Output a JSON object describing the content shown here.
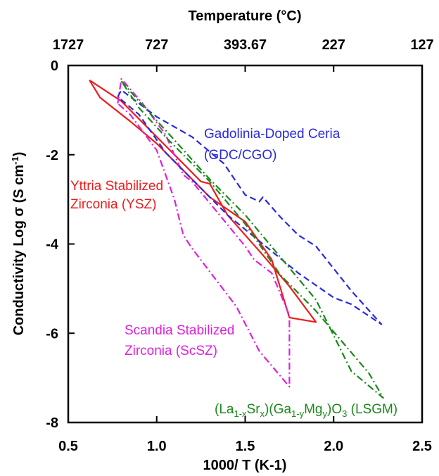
{
  "chart_data": {
    "type": "line",
    "xlabel": "1000/ T (K-1)",
    "ylabel_main": "Conductivity Log σ (S cm",
    "ylabel_sup": "-1",
    "ylabel_end": ")",
    "top_axis_label": "Temperature (°C)",
    "top_ticks": [
      {
        "label": "1727",
        "x": 0.5
      },
      {
        "label": "727",
        "x": 1.0
      },
      {
        "label": "393.67",
        "x": 1.5
      },
      {
        "label": "227",
        "x": 2.0
      },
      {
        "label": "127",
        "x": 2.5
      }
    ],
    "xlim": [
      0.5,
      2.5
    ],
    "ylim": [
      -8,
      0
    ],
    "x_ticks": [
      0.5,
      1.0,
      1.5,
      2.0,
      2.5
    ],
    "x_tick_labels": [
      "0.5",
      "1.0",
      "1.5",
      "2.0",
      "2.5"
    ],
    "y_ticks": [
      0,
      -2,
      -4,
      -6,
      -8
    ],
    "y_tick_labels": [
      "0",
      "-2",
      "-4",
      "-6",
      "-8"
    ],
    "colors": {
      "ysz": "#ee1c1c",
      "scsz": "#e020e0",
      "gdc": "#2a2add",
      "lsgm": "#1a8a1a"
    },
    "series": [
      {
        "key": "ysz",
        "dash": "solid",
        "x": [
          0.62,
          0.68,
          0.85,
          1.0,
          1.1,
          1.3,
          1.5,
          1.65,
          1.75,
          1.9,
          1.75,
          1.6,
          1.4,
          1.3,
          1.25,
          1.15,
          1.0,
          0.8,
          0.62
        ],
        "y": [
          -0.33,
          -0.72,
          -1.25,
          -1.75,
          -2.15,
          -2.95,
          -3.5,
          -4.35,
          -5.65,
          -5.75,
          -4.95,
          -4.25,
          -3.35,
          -2.65,
          -2.6,
          -2.2,
          -1.6,
          -0.8,
          -0.33
        ]
      },
      {
        "key": "scsz",
        "dash": "dash-dot",
        "x": [
          0.78,
          0.8,
          0.92,
          1.05,
          1.1,
          1.15,
          1.2,
          1.5,
          1.55,
          1.65,
          1.75,
          1.75,
          1.58,
          1.45,
          1.2,
          1.15,
          1.1,
          1.0,
          0.85,
          0.78
        ],
        "y": [
          -0.85,
          -0.3,
          -0.85,
          -1.55,
          -2.0,
          -2.45,
          -2.6,
          -4.05,
          -4.35,
          -4.65,
          -5.6,
          -7.2,
          -6.4,
          -5.4,
          -4.1,
          -3.8,
          -3.0,
          -1.9,
          -1.1,
          -0.85
        ]
      },
      {
        "key": "gdc",
        "dash": "dash",
        "x": [
          0.78,
          0.8,
          1.0,
          1.2,
          1.38,
          1.5,
          1.58,
          1.6,
          1.7,
          1.8,
          1.9,
          2.1,
          2.27,
          2.1,
          2.0,
          1.8,
          1.6,
          1.4,
          1.2,
          1.05,
          0.9,
          0.78
        ],
        "y": [
          -0.7,
          -0.55,
          -1.15,
          -1.6,
          -2.2,
          -2.9,
          -3.05,
          -2.95,
          -3.4,
          -3.8,
          -4.05,
          -5.05,
          -5.8,
          -5.35,
          -5.2,
          -4.65,
          -4.0,
          -3.35,
          -2.55,
          -1.95,
          -1.1,
          -0.7
        ]
      },
      {
        "key": "lsgm",
        "dash": "dash-dot",
        "x": [
          0.8,
          0.9,
          1.05,
          1.3,
          1.5,
          1.7,
          1.9,
          2.0,
          2.1,
          2.28,
          2.2,
          2.05,
          1.9,
          1.7,
          1.5,
          1.3,
          1.05,
          0.9,
          0.8
        ],
        "y": [
          -0.35,
          -0.8,
          -1.45,
          -2.55,
          -3.35,
          -4.3,
          -5.25,
          -6.05,
          -6.85,
          -7.45,
          -6.9,
          -6.2,
          -5.5,
          -4.7,
          -3.55,
          -2.6,
          -1.6,
          -0.95,
          -0.35
        ]
      }
    ],
    "annotations": [
      {
        "key": "gdc",
        "lines": [
          "Gadolinia-Doped Ceria",
          "(GDC/CGO)"
        ]
      },
      {
        "key": "ysz",
        "lines": [
          "Yttria Stabilized",
          "Zirconia (YSZ)"
        ]
      },
      {
        "key": "scsz",
        "lines": [
          "Scandia Stabilized",
          "Zirconia  (ScSZ)"
        ]
      }
    ],
    "lsgm_label": {
      "parts": [
        {
          "t": "(La",
          "s": "n"
        },
        {
          "t": "1-x",
          "s": "sub"
        },
        {
          "t": "Sr",
          "s": "n"
        },
        {
          "t": "x",
          "s": "sub"
        },
        {
          "t": ")(Ga",
          "s": "n"
        },
        {
          "t": "1-y",
          "s": "sub"
        },
        {
          "t": "Mg",
          "s": "n"
        },
        {
          "t": "y",
          "s": "sub"
        },
        {
          "t": ")O",
          "s": "n"
        },
        {
          "t": "3",
          "s": "sub"
        },
        {
          "t": " (LSGM)",
          "s": "n"
        }
      ]
    }
  }
}
